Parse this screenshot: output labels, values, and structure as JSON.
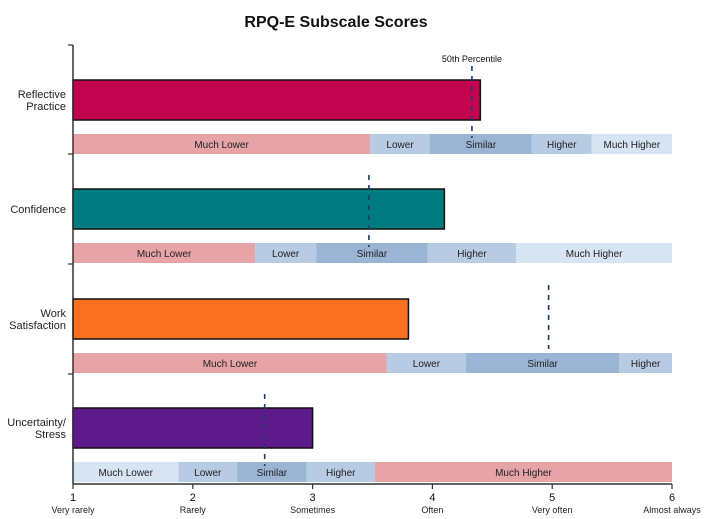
{
  "chart_data": {
    "type": "bar",
    "orientation": "horizontal",
    "title": "RPQ-E Subscale Scores",
    "xlim": [
      1,
      6
    ],
    "x_ticks": [
      {
        "value": 1,
        "word": "Very rarely"
      },
      {
        "value": 2,
        "word": "Rarely"
      },
      {
        "value": 3,
        "word": "Sometimes"
      },
      {
        "value": 4,
        "word": "Often"
      },
      {
        "value": 5,
        "word": "Very often"
      },
      {
        "value": 6,
        "word": "Almost always"
      }
    ],
    "percentile_label": "50th Percentile",
    "categories": [
      {
        "name_lines": [
          "Reflective",
          "Practice"
        ],
        "value": 4.4,
        "color": "#C2044E",
        "percentile_50": 4.33,
        "bands": [
          {
            "label": "Much Lower",
            "from": 1.0,
            "to": 3.48
          },
          {
            "label": "Lower",
            "from": 3.48,
            "to": 3.98
          },
          {
            "label": "Similar",
            "from": 3.98,
            "to": 4.83
          },
          {
            "label": "Higher",
            "from": 4.83,
            "to": 5.33
          },
          {
            "label": "Much Higher",
            "from": 5.33,
            "to": 6.0
          }
        ]
      },
      {
        "name_lines": [
          "Confidence"
        ],
        "value": 4.1,
        "color": "#007B82",
        "percentile_50": 3.47,
        "bands": [
          {
            "label": "Much Lower",
            "from": 1.0,
            "to": 2.52
          },
          {
            "label": "Lower",
            "from": 2.52,
            "to": 3.03
          },
          {
            "label": "Similar",
            "from": 3.03,
            "to": 3.96
          },
          {
            "label": "Higher",
            "from": 3.96,
            "to": 4.7
          },
          {
            "label": "Much Higher",
            "from": 4.7,
            "to": 6.0
          }
        ]
      },
      {
        "name_lines": [
          "Work",
          "Satisfaction"
        ],
        "value": 3.8,
        "color": "#FB6F20",
        "percentile_50": 4.97,
        "bands": [
          {
            "label": "Much Lower",
            "from": 1.0,
            "to": 3.62
          },
          {
            "label": "Lower",
            "from": 3.62,
            "to": 4.28
          },
          {
            "label": "Similar",
            "from": 4.28,
            "to": 5.56
          },
          {
            "label": "Higher",
            "from": 5.56,
            "to": 6.0
          }
        ]
      },
      {
        "name_lines": [
          "Uncertainty/",
          "Stress"
        ],
        "value": 3.0,
        "color": "#5E198A",
        "percentile_50": 2.6,
        "bands": [
          {
            "label": "Much Lower",
            "from": 1.0,
            "to": 1.88
          },
          {
            "label": "Lower",
            "from": 1.88,
            "to": 2.37
          },
          {
            "label": "Similar",
            "from": 2.37,
            "to": 2.95
          },
          {
            "label": "Higher",
            "from": 2.95,
            "to": 3.52
          },
          {
            "label": "Much Higher",
            "from": 3.52,
            "to": 6.0
          }
        ]
      }
    ],
    "band_colors": {
      "Much Lower": "#E6A4A7",
      "Lower": "#B7CBE2",
      "Similar": "#99B5D3",
      "Higher": "#B7CBE2",
      "Much Higher": "#D6E4F3"
    },
    "reversed_band_colors": {
      "Much Lower": "#D6E4F3",
      "Lower": "#B7CBE2",
      "Similar": "#99B5D3",
      "Higher": "#B7CBE2",
      "Much Higher": "#E6A4A7"
    },
    "reversed_index": 3
  }
}
